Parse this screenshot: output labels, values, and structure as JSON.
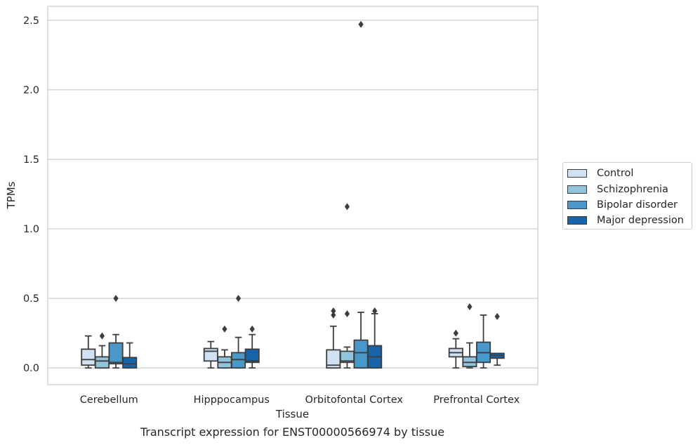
{
  "caption": "Transcript expression for ENST00000566974 by tissue",
  "colors": {
    "Control": "#cfe1f2",
    "Schizophrenia": "#93c4de",
    "Bipolar disorder": "#4a98c9",
    "Major depression": "#1764ab"
  },
  "chart_data": {
    "type": "box",
    "xlabel": "Tissue",
    "ylabel": "TPMs",
    "ylim": [
      -0.12,
      2.6
    ],
    "yticks": [
      0.0,
      0.5,
      1.0,
      1.5,
      2.0,
      2.5
    ],
    "ytick_labels": [
      "0.0",
      "0.5",
      "1.0",
      "1.5",
      "2.0",
      "2.5"
    ],
    "grid": "horizontal",
    "legend_position": "right",
    "categories": [
      "Cerebellum",
      "Hipppocampus",
      "Orbitofontal Cortex",
      "Prefrontal Cortex"
    ],
    "series": [
      {
        "name": "Control",
        "boxes": [
          {
            "whisker_low": 0.0,
            "q1": 0.02,
            "median": 0.06,
            "q3": 0.135,
            "whisker_high": 0.23,
            "outliers": []
          },
          {
            "whisker_low": 0.0,
            "q1": 0.05,
            "median": 0.12,
            "q3": 0.14,
            "whisker_high": 0.19,
            "outliers": []
          },
          {
            "whisker_low": 0.0,
            "q1": 0.0,
            "median": 0.02,
            "q3": 0.13,
            "whisker_high": 0.3,
            "outliers": [
              0.38,
              0.41
            ]
          },
          {
            "whisker_low": 0.0,
            "q1": 0.08,
            "median": 0.11,
            "q3": 0.14,
            "whisker_high": 0.21,
            "outliers": [
              0.25
            ]
          }
        ]
      },
      {
        "name": "Schizophrenia",
        "boxes": [
          {
            "whisker_low": 0.0,
            "q1": 0.0,
            "median": 0.05,
            "q3": 0.08,
            "whisker_high": 0.16,
            "outliers": [
              0.23
            ]
          },
          {
            "whisker_low": 0.0,
            "q1": 0.0,
            "median": 0.04,
            "q3": 0.08,
            "whisker_high": 0.13,
            "outliers": [
              0.28
            ]
          },
          {
            "whisker_low": 0.0,
            "q1": 0.04,
            "median": 0.05,
            "q3": 0.12,
            "whisker_high": 0.15,
            "outliers": [
              0.39,
              1.16
            ]
          },
          {
            "whisker_low": 0.0,
            "q1": 0.01,
            "median": 0.04,
            "q3": 0.08,
            "whisker_high": 0.18,
            "outliers": [
              0.44
            ]
          }
        ]
      },
      {
        "name": "Bipolar disorder",
        "boxes": [
          {
            "whisker_low": 0.0,
            "q1": 0.03,
            "median": 0.04,
            "q3": 0.18,
            "whisker_high": 0.24,
            "outliers": [
              0.5
            ]
          },
          {
            "whisker_low": 0.0,
            "q1": 0.0,
            "median": 0.06,
            "q3": 0.11,
            "whisker_high": 0.22,
            "outliers": [
              0.5
            ]
          },
          {
            "whisker_low": 0.0,
            "q1": 0.0,
            "median": 0.11,
            "q3": 0.2,
            "whisker_high": 0.4,
            "outliers": [
              2.47
            ]
          },
          {
            "whisker_low": 0.0,
            "q1": 0.04,
            "median": 0.11,
            "q3": 0.185,
            "whisker_high": 0.38,
            "outliers": []
          }
        ]
      },
      {
        "name": "Major depression",
        "boxes": [
          {
            "whisker_low": 0.0,
            "q1": 0.0,
            "median": 0.03,
            "q3": 0.075,
            "whisker_high": 0.18,
            "outliers": []
          },
          {
            "whisker_low": 0.0,
            "q1": 0.04,
            "median": 0.05,
            "q3": 0.135,
            "whisker_high": 0.24,
            "outliers": [
              0.28
            ]
          },
          {
            "whisker_low": 0.0,
            "q1": 0.0,
            "median": 0.08,
            "q3": 0.16,
            "whisker_high": 0.39,
            "outliers": [
              0.41
            ]
          },
          {
            "whisker_low": 0.02,
            "q1": 0.07,
            "median": 0.09,
            "q3": 0.105,
            "whisker_high": 0.105,
            "outliers": [
              0.37
            ]
          }
        ]
      }
    ]
  }
}
